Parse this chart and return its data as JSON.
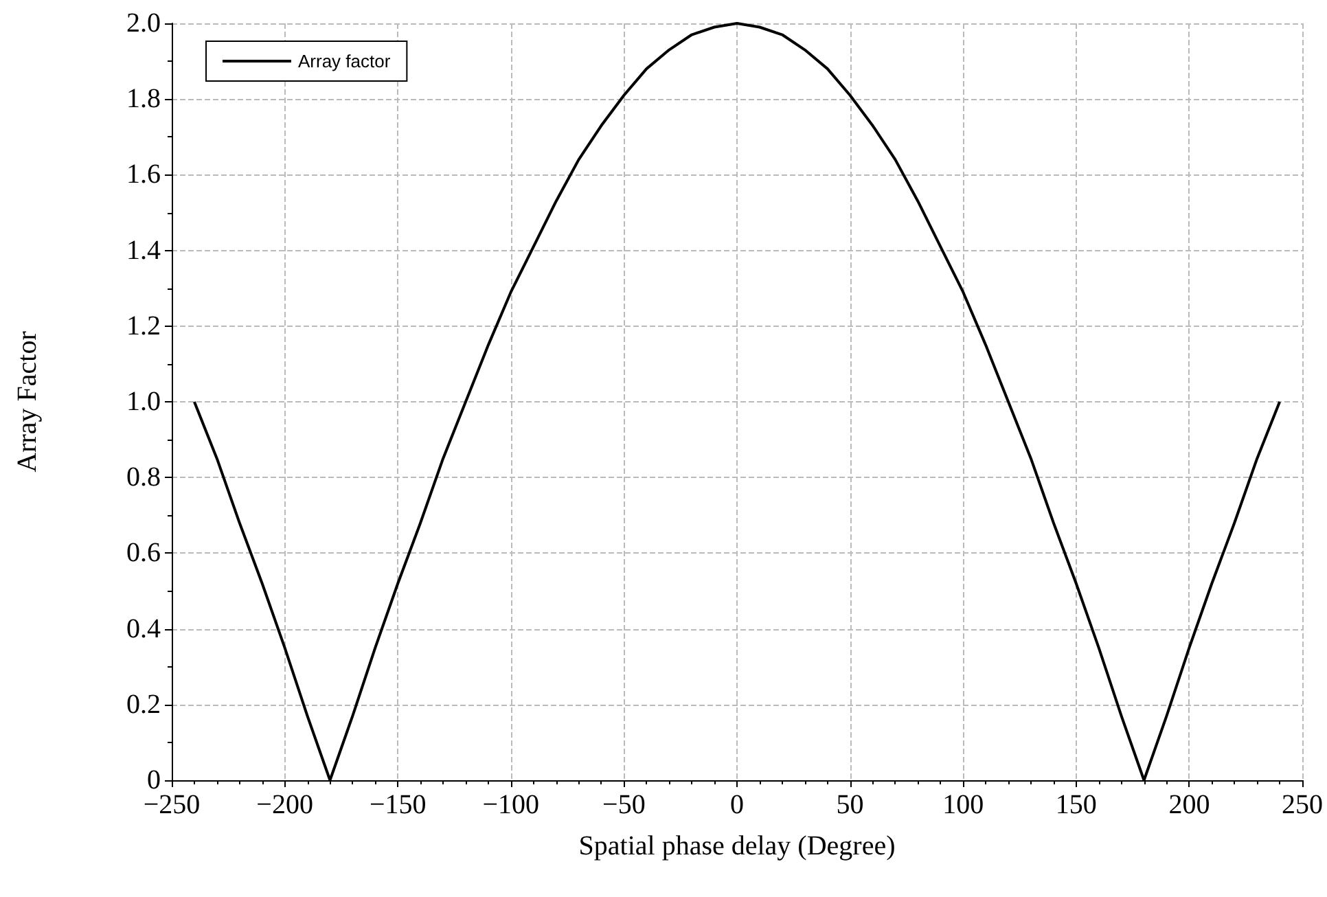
{
  "chart_data": {
    "type": "line",
    "xlabel": "Spatial phase delay (Degree)",
    "ylabel": "Array Factor",
    "x": [
      -240,
      -230,
      -220,
      -210,
      -200,
      -190,
      -180,
      -170,
      -160,
      -150,
      -140,
      -130,
      -120,
      -110,
      -100,
      -90,
      -80,
      -70,
      -60,
      -50,
      -40,
      -30,
      -20,
      -10,
      0,
      10,
      20,
      30,
      40,
      50,
      60,
      70,
      80,
      90,
      100,
      110,
      120,
      130,
      140,
      150,
      160,
      170,
      180,
      190,
      200,
      210,
      220,
      230,
      240
    ],
    "series": [
      {
        "name": "Array factor",
        "color": "#000000",
        "values": [
          1.0,
          0.85,
          0.68,
          0.52,
          0.35,
          0.17,
          0,
          0.17,
          0.35,
          0.52,
          0.68,
          0.85,
          1.0,
          1.15,
          1.29,
          1.41,
          1.53,
          1.64,
          1.73,
          1.81,
          1.88,
          1.93,
          1.97,
          1.99,
          2.0,
          1.99,
          1.97,
          1.93,
          1.88,
          1.81,
          1.73,
          1.64,
          1.53,
          1.41,
          1.29,
          1.15,
          1.0,
          0.85,
          0.68,
          0.52,
          0.35,
          0.17,
          0,
          0.17,
          0.35,
          0.52,
          0.68,
          0.85,
          1.0
        ]
      }
    ],
    "xlim": [
      -250,
      250
    ],
    "xticks": [
      {
        "value": -250,
        "label": "−250"
      },
      {
        "value": -200,
        "label": "−200"
      },
      {
        "value": -150,
        "label": "−150"
      },
      {
        "value": -100,
        "label": "−100"
      },
      {
        "value": -50,
        "label": "−50"
      },
      0,
      50,
      100,
      150,
      200,
      250
    ],
    "ylim": [
      0,
      2
    ],
    "yticks": [
      0,
      0.2,
      0.4,
      0.6,
      0.8,
      {
        "value": 1,
        "label": "1.0"
      },
      1.2,
      1.4,
      1.6,
      1.8,
      {
        "value": 2,
        "label": "2.0"
      }
    ],
    "grid": true,
    "legend": "top left",
    "marker": "none",
    "line_style": "solid"
  }
}
